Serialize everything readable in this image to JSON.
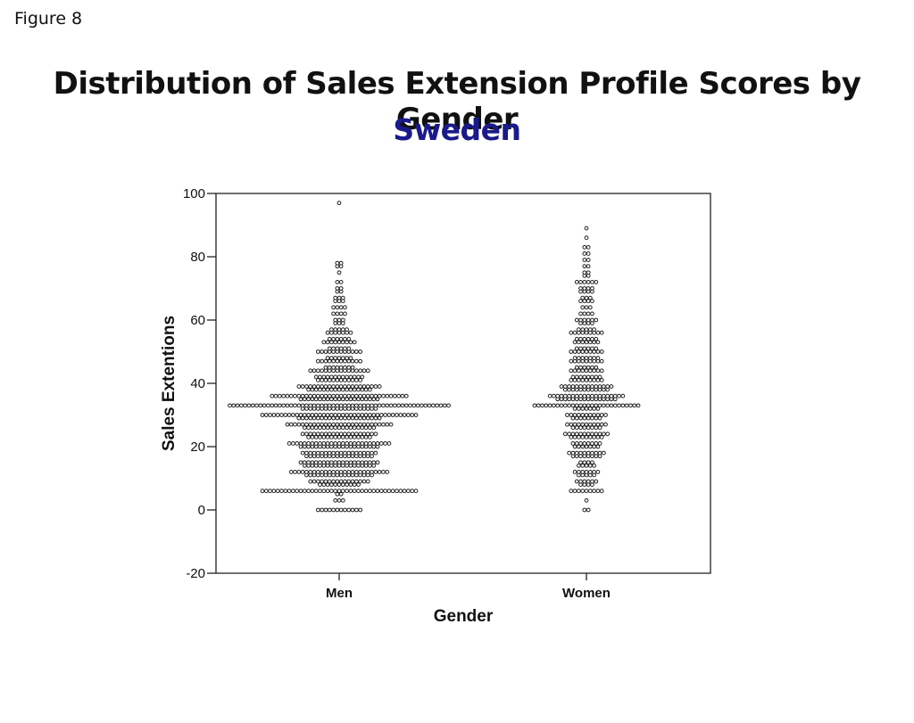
{
  "figure_label": "Figure 8",
  "title": "Distribution of Sales Extension Profile Scores by Gender",
  "subtitle": "Sweden",
  "colors": {
    "title": "#111111",
    "subtitle": "#1a1a8c",
    "dot_stroke": "#222222",
    "dot_fill": "#ffffff"
  },
  "chart_data": {
    "type": "scatter",
    "subtype": "dot-plot",
    "title": "",
    "xlabel": "Gender",
    "ylabel": "Sales Extentions",
    "categories": [
      "Men",
      "Women"
    ],
    "ylim": [
      -20,
      100
    ],
    "yticks": [
      -20,
      0,
      20,
      40,
      60,
      80,
      100
    ],
    "grid": false,
    "dot_bin_width": 1.6,
    "series": [
      {
        "category": "Men",
        "bins": [
          [
            0,
            12
          ],
          [
            3,
            3
          ],
          [
            5,
            2
          ],
          [
            6,
            41
          ],
          [
            8,
            11
          ],
          [
            9,
            16
          ],
          [
            11,
            18
          ],
          [
            12,
            26
          ],
          [
            14,
            19
          ],
          [
            15,
            21
          ],
          [
            17,
            18
          ],
          [
            18,
            20
          ],
          [
            20,
            21
          ],
          [
            21,
            27
          ],
          [
            23,
            17
          ],
          [
            24,
            20
          ],
          [
            26,
            19
          ],
          [
            27,
            28
          ],
          [
            29,
            22
          ],
          [
            30,
            41
          ],
          [
            32,
            20
          ],
          [
            33,
            58
          ],
          [
            35,
            21
          ],
          [
            36,
            36
          ],
          [
            38,
            17
          ],
          [
            39,
            22
          ],
          [
            41,
            12
          ],
          [
            42,
            13
          ],
          [
            44,
            16
          ],
          [
            45,
            8
          ],
          [
            47,
            12
          ],
          [
            48,
            7
          ],
          [
            50,
            12
          ],
          [
            51,
            6
          ],
          [
            53,
            9
          ],
          [
            54,
            6
          ],
          [
            56,
            7
          ],
          [
            57,
            5
          ],
          [
            59,
            3
          ],
          [
            60,
            3
          ],
          [
            62,
            4
          ],
          [
            64,
            4
          ],
          [
            66,
            3
          ],
          [
            67,
            3
          ],
          [
            69,
            2
          ],
          [
            70,
            2
          ],
          [
            72,
            2
          ],
          [
            75,
            1
          ],
          [
            77,
            2
          ],
          [
            78,
            2
          ],
          [
            97,
            1
          ]
        ]
      },
      {
        "category": "Women",
        "bins": [
          [
            0,
            2
          ],
          [
            3,
            1
          ],
          [
            6,
            9
          ],
          [
            8,
            4
          ],
          [
            9,
            6
          ],
          [
            11,
            5
          ],
          [
            12,
            7
          ],
          [
            14,
            5
          ],
          [
            15,
            4
          ],
          [
            17,
            8
          ],
          [
            18,
            10
          ],
          [
            20,
            7
          ],
          [
            21,
            8
          ],
          [
            23,
            9
          ],
          [
            24,
            12
          ],
          [
            26,
            8
          ],
          [
            27,
            11
          ],
          [
            29,
            8
          ],
          [
            30,
            11
          ],
          [
            32,
            7
          ],
          [
            33,
            28
          ],
          [
            35,
            16
          ],
          [
            36,
            20
          ],
          [
            38,
            12
          ],
          [
            39,
            14
          ],
          [
            41,
            9
          ],
          [
            42,
            8
          ],
          [
            44,
            9
          ],
          [
            45,
            6
          ],
          [
            47,
            9
          ],
          [
            48,
            7
          ],
          [
            50,
            9
          ],
          [
            51,
            6
          ],
          [
            53,
            7
          ],
          [
            54,
            6
          ],
          [
            56,
            9
          ],
          [
            57,
            5
          ],
          [
            59,
            4
          ],
          [
            60,
            6
          ],
          [
            62,
            4
          ],
          [
            64,
            3
          ],
          [
            66,
            4
          ],
          [
            67,
            3
          ],
          [
            69,
            4
          ],
          [
            70,
            4
          ],
          [
            72,
            6
          ],
          [
            74,
            2
          ],
          [
            75,
            2
          ],
          [
            77,
            2
          ],
          [
            79,
            2
          ],
          [
            81,
            2
          ],
          [
            83,
            2
          ],
          [
            86,
            1
          ],
          [
            89,
            1
          ]
        ]
      }
    ]
  }
}
